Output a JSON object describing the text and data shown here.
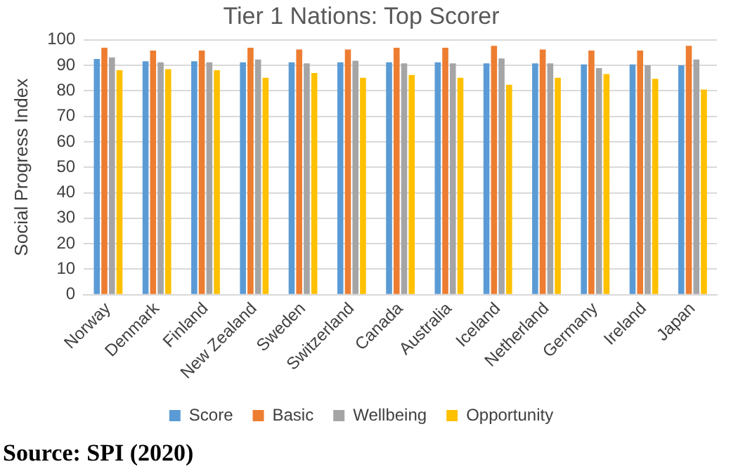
{
  "chart_data": {
    "type": "bar",
    "title": "Tier 1 Nations: Top Scorer",
    "ylabel": "Social Progress Index",
    "categories": [
      "Norway",
      "Denmark",
      "Finland",
      "New Zealand",
      "Sweden",
      "Switzerland",
      "Canada",
      "Australia",
      "Iceland",
      "Netherland",
      "Germany",
      "Ireland",
      "Japan"
    ],
    "series": [
      {
        "name": "Score",
        "color": "#5b9bd5",
        "values": [
          92.5,
          91.6,
          91.6,
          91.2,
          91.2,
          91.2,
          91.2,
          91.2,
          90.8,
          90.8,
          90.4,
          90.4,
          90.0
        ]
      },
      {
        "name": "Basic",
        "color": "#ed7d31",
        "values": [
          96.9,
          95.8,
          95.8,
          96.9,
          96.2,
          96.2,
          96.9,
          96.9,
          97.7,
          96.2,
          95.8,
          95.8,
          97.7
        ]
      },
      {
        "name": "Wellbeing",
        "color": "#a5a5a5",
        "values": [
          93.1,
          91.2,
          91.2,
          92.3,
          90.8,
          91.8,
          90.8,
          90.8,
          92.7,
          90.8,
          88.9,
          90.0,
          92.3
        ]
      },
      {
        "name": "Opportunity",
        "color": "#ffc000",
        "values": [
          88.1,
          88.5,
          88.1,
          85.1,
          87.0,
          85.1,
          86.2,
          85.1,
          82.4,
          85.1,
          86.6,
          84.7,
          80.5
        ]
      }
    ],
    "ylim": [
      0,
      100
    ],
    "yticks": [
      0,
      10,
      20,
      30,
      40,
      50,
      60,
      70,
      80,
      90,
      100
    ],
    "grid": "y",
    "legend": "bottom",
    "annotations": [
      "Source: SPI (2020)"
    ]
  }
}
